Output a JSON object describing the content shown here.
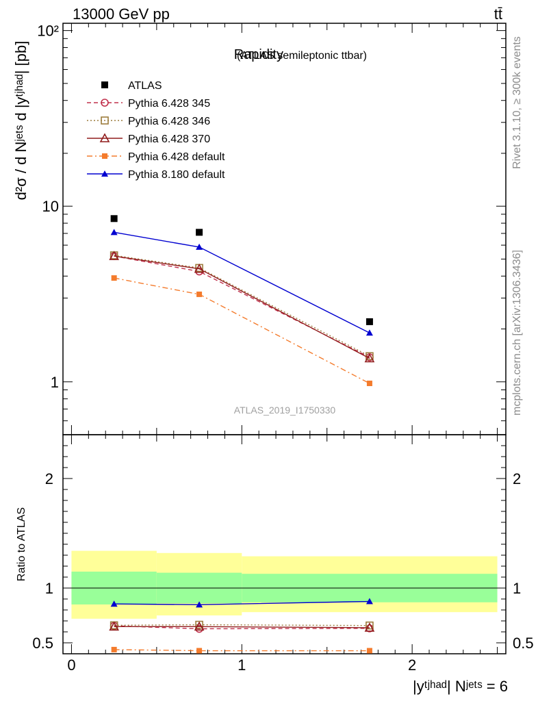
{
  "header": {
    "left_title": "13000 GeV pp",
    "right_title": "tt̄"
  },
  "side_labels": {
    "upper": "Rivet 3.1.10, ≥ 300k events",
    "lower": "mcplots.cern.ch [arXiv:1306.3436]"
  },
  "colors": {
    "atlas": "#000000",
    "p345": "#c0304c",
    "p346": "#9c7c3c",
    "p370": "#901c1c",
    "p6def": "#f47b2c",
    "p8def": "#0000d0",
    "band_inner": "#99ff99",
    "band_outer": "#ffff99"
  },
  "chart_data": [
    {
      "type": "line",
      "title": "Rapidity",
      "subtitle": "(ATLAS semileptonic ttbar)",
      "ylabel": "d²σ / d Nʲᵉᵗˢ d |yᵗʲʰᵃᵈ| [pb]",
      "yscale": "log",
      "ylim": [
        0.5,
        110
      ],
      "xlim": [
        -0.05,
        2.55
      ],
      "y_ticks": [
        "1",
        "10",
        "10²"
      ],
      "analysis_label": "ATLAS_2019_I1750330",
      "x": [
        0.25,
        0.75,
        1.75
      ],
      "bin_edges": [
        0,
        0.5,
        1.0,
        2.5
      ],
      "series": [
        {
          "name": "ATLAS",
          "marker": "square-filled",
          "values": [
            8.5,
            7.1,
            2.2
          ]
        },
        {
          "name": "Pythia 6.428 345",
          "marker": "circle-open",
          "dash": "dashed",
          "values": [
            5.2,
            4.25,
            1.38
          ]
        },
        {
          "name": "Pythia 6.428 346",
          "marker": "square-open",
          "dash": "dotted",
          "values": [
            5.25,
            4.45,
            1.4
          ]
        },
        {
          "name": "Pythia 6.428 370",
          "marker": "triangle-open",
          "dash": "solid",
          "values": [
            5.2,
            4.4,
            1.36
          ]
        },
        {
          "name": "Pythia 6.428 default",
          "marker": "square-filled-small",
          "dash": "dashdot",
          "values": [
            3.9,
            3.15,
            0.98
          ]
        },
        {
          "name": "Pythia 8.180 default",
          "marker": "triangle-filled",
          "dash": "solid",
          "values": [
            7.1,
            5.85,
            1.9
          ]
        }
      ]
    },
    {
      "type": "line",
      "ylabel": "Ratio to ATLAS",
      "ylim": [
        0.4,
        2.4
      ],
      "xlim": [
        -0.05,
        2.55
      ],
      "y_ticks": [
        "0.5",
        "1",
        "2"
      ],
      "x_ticks": [
        "0",
        "1",
        "2"
      ],
      "xlabel": "|yᵗʲʰᵃᵈ| Nʲᵉᵗˢ = 6",
      "x": [
        0.25,
        0.75,
        1.75
      ],
      "bands": {
        "bin_edges": [
          0,
          0.5,
          1.0,
          2.5
        ],
        "inner": [
          [
            0.85,
            1.15
          ],
          [
            0.86,
            1.14
          ],
          [
            0.87,
            1.13
          ]
        ],
        "outer": [
          [
            0.72,
            1.34
          ],
          [
            0.75,
            1.32
          ],
          [
            0.78,
            1.29
          ]
        ]
      },
      "series": [
        {
          "name": "Pythia 6.428 345",
          "values": [
            0.655,
            0.628,
            0.632
          ]
        },
        {
          "name": "Pythia 6.428 346",
          "values": [
            0.66,
            0.665,
            0.658
          ]
        },
        {
          "name": "Pythia 6.428 370",
          "values": [
            0.648,
            0.648,
            0.638
          ]
        },
        {
          "name": "Pythia 6.428 default",
          "values": [
            0.438,
            0.428,
            0.428
          ]
        },
        {
          "name": "Pythia 8.180 default",
          "values": [
            0.855,
            0.848,
            0.878
          ]
        }
      ]
    }
  ]
}
